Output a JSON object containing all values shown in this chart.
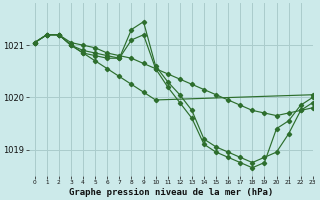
{
  "title": "Graphe pression niveau de la mer (hPa)",
  "background_color": "#cceaea",
  "grid_color": "#aacccc",
  "line_color": "#2d6e2d",
  "xlim": [
    -0.5,
    23
  ],
  "ylim": [
    1018.5,
    1021.8
  ],
  "yticks": [
    1019,
    1020,
    1021
  ],
  "xticks": [
    0,
    1,
    2,
    3,
    4,
    5,
    6,
    7,
    8,
    9,
    10,
    11,
    12,
    13,
    14,
    15,
    16,
    17,
    18,
    19,
    20,
    21,
    22,
    23
  ],
  "series": [
    {
      "x": [
        0,
        1,
        2,
        3,
        4,
        5,
        6,
        7,
        8,
        9,
        10,
        11,
        12,
        13,
        14,
        15,
        16,
        17,
        18,
        19,
        20,
        21,
        22,
        23
      ],
      "y": [
        1021.05,
        1021.2,
        1021.2,
        1021.05,
        1021.0,
        1020.95,
        1020.85,
        1020.8,
        1020.75,
        1020.65,
        1020.55,
        1020.45,
        1020.35,
        1020.25,
        1020.15,
        1020.05,
        1019.95,
        1019.85,
        1019.75,
        1019.7,
        1019.65,
        1019.7,
        1019.75,
        1019.8
      ]
    },
    {
      "x": [
        0,
        1,
        2,
        3,
        4,
        5,
        6,
        7,
        8,
        9,
        10,
        11,
        12,
        13,
        14,
        15,
        16,
        17,
        18,
        19,
        20,
        21,
        22,
        23
      ],
      "y": [
        1021.05,
        1021.2,
        1021.2,
        1021.0,
        1020.85,
        1020.8,
        1020.75,
        1020.75,
        1021.3,
        1021.45,
        1020.6,
        1020.3,
        1020.05,
        1019.75,
        1019.2,
        1019.05,
        1018.95,
        1018.85,
        1018.75,
        1018.85,
        1018.95,
        1019.3,
        1019.75,
        1019.9
      ]
    },
    {
      "x": [
        0,
        1,
        2,
        3,
        4,
        5,
        6,
        7,
        8,
        9,
        10,
        11,
        12,
        13,
        14,
        15,
        16,
        17,
        18,
        19,
        20,
        21,
        22,
        23
      ],
      "y": [
        1021.05,
        1021.2,
        1021.2,
        1021.0,
        1020.9,
        1020.85,
        1020.8,
        1020.75,
        1021.1,
        1021.2,
        1020.55,
        1020.2,
        1019.9,
        1019.6,
        1019.1,
        1018.95,
        1018.85,
        1018.75,
        1018.65,
        1018.75,
        1019.4,
        1019.55,
        1019.85,
        1020.0
      ]
    },
    {
      "x": [
        0,
        1,
        2,
        3,
        4,
        5,
        6,
        7,
        8,
        9,
        10,
        23
      ],
      "y": [
        1021.05,
        1021.2,
        1021.2,
        1021.0,
        1020.85,
        1020.7,
        1020.55,
        1020.4,
        1020.25,
        1020.1,
        1019.95,
        1020.05
      ]
    }
  ]
}
